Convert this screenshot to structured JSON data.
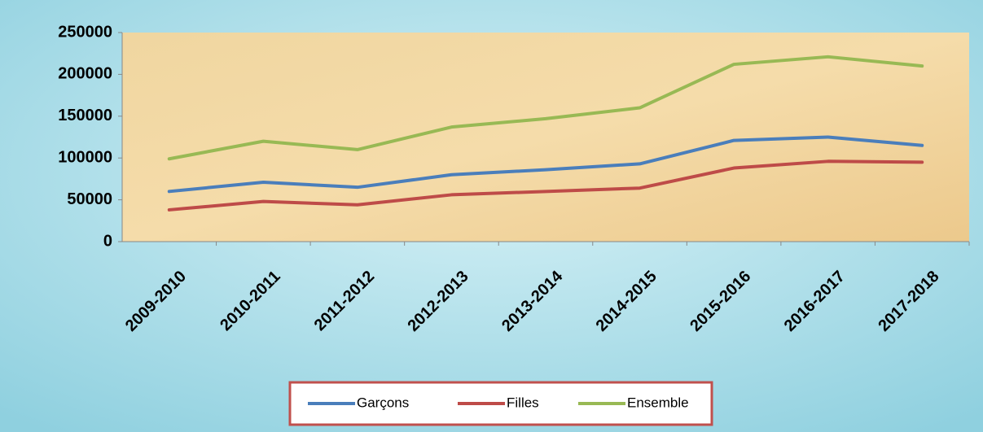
{
  "chart_data": {
    "type": "line",
    "categories": [
      "2009-2010",
      "2010-2011",
      "2011-2012",
      "2012-2013",
      "2013-2014",
      "2014-2015",
      "2015-2016",
      "2016-2017",
      "2017-2018"
    ],
    "series": [
      {
        "name": "Garçons",
        "color": "#4a7ebb",
        "values": [
          60000,
          71000,
          65000,
          80000,
          86000,
          93000,
          121000,
          125000,
          115000
        ]
      },
      {
        "name": "Filles",
        "color": "#be4b48",
        "values": [
          38000,
          48000,
          44000,
          56000,
          60000,
          64000,
          88000,
          96000,
          95000
        ]
      },
      {
        "name": "Ensemble",
        "color": "#98b954",
        "values": [
          99000,
          120000,
          110000,
          137000,
          147000,
          160000,
          212000,
          221000,
          210000
        ]
      }
    ],
    "ylim": [
      0,
      250000
    ],
    "yticks": [
      0,
      50000,
      100000,
      150000,
      200000,
      250000
    ]
  }
}
